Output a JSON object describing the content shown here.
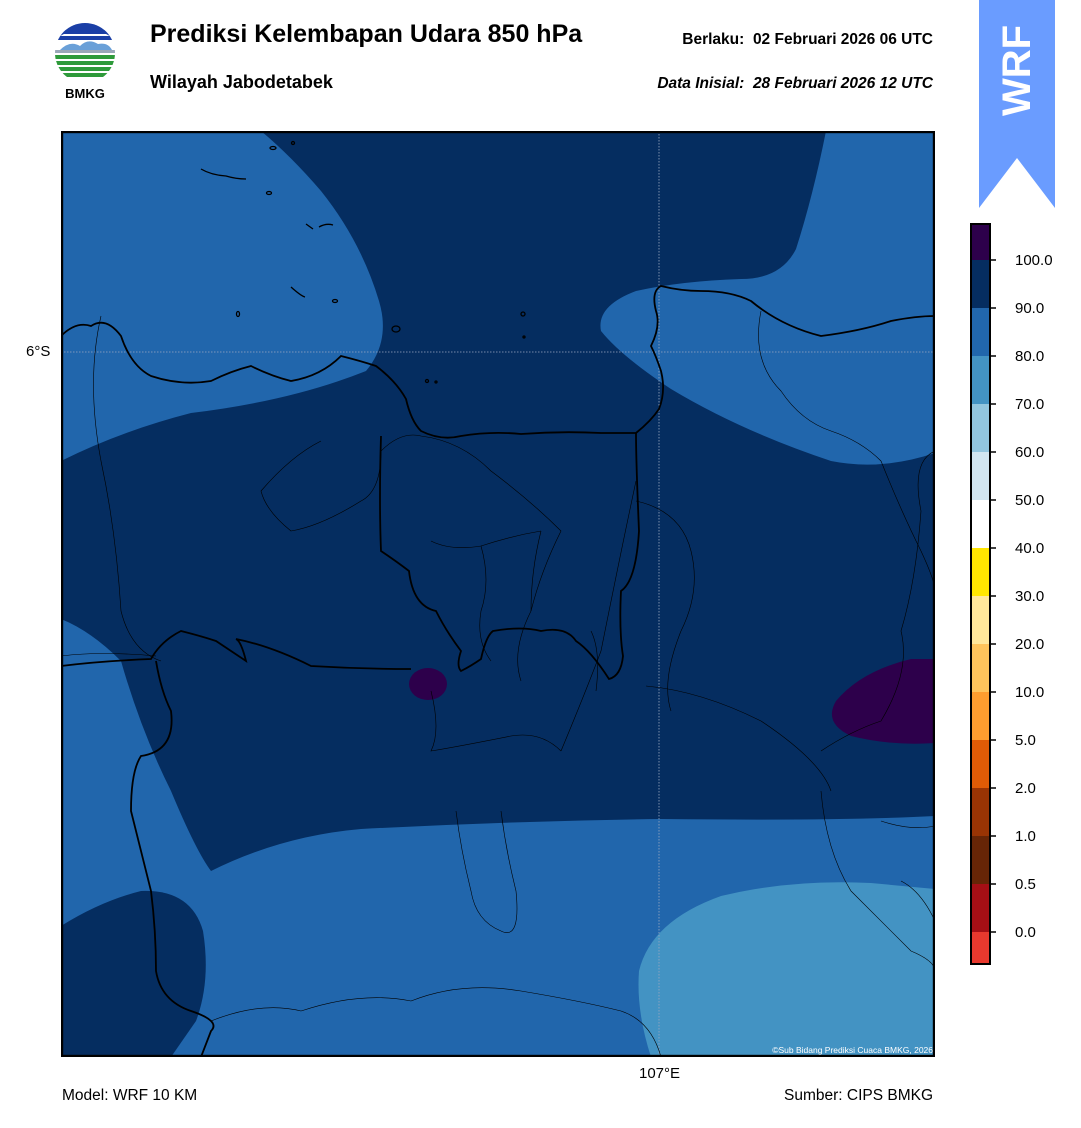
{
  "header": {
    "logo_text": "BMKG",
    "title": "Prediksi Kelembapan Udara 850 hPa",
    "subtitle": "Wilayah Jabodetabek",
    "valid_label": "Berlaku:",
    "valid_time": "02 Februari 2026 06 UTC",
    "initial_label": "Data Inisial:",
    "initial_time": "28 Februari 2026 12 UTC"
  },
  "badge": {
    "text": "WRF",
    "color": "#6a9cff"
  },
  "map": {
    "lat_label": "6°S",
    "lon_label": "107°E",
    "copyright": "©Sub Bidang Prediksi Cuaca BMKG, 2026",
    "fill_colors": {
      "band_80_90": "#2166ac",
      "band_90_100": "#052d60",
      "band_100_plus": "#2d004b",
      "band_70_80": "#4393c3"
    }
  },
  "colorbar": {
    "ticks": [
      "100.0",
      "90.0",
      "80.0",
      "70.0",
      "60.0",
      "50.0",
      "40.0",
      "30.0",
      "20.0",
      "10.0",
      "5.0",
      "2.0",
      "1.0",
      "0.5",
      "0.0"
    ],
    "colors": [
      "#2d004b",
      "#052d60",
      "#2166ac",
      "#4393c3",
      "#92c5de",
      "#d1e5f0",
      "#ffffff",
      "#ffe600",
      "#ffe79a",
      "#fec45c",
      "#fe9d2f",
      "#e05b06",
      "#993404",
      "#662506",
      "#a50f15",
      "#e8392e"
    ]
  },
  "footer": {
    "model": "Model: WRF 10 KM",
    "source": "Sumber: CIPS BMKG"
  }
}
